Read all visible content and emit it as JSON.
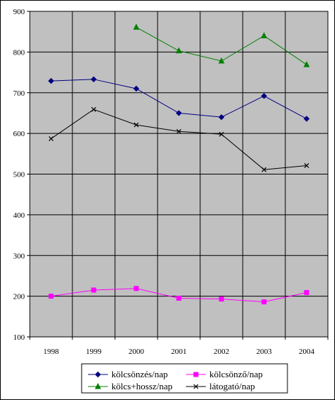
{
  "chart_data": {
    "type": "line",
    "categories": [
      "1998",
      "1999",
      "2000",
      "2001",
      "2002",
      "2003",
      "2004"
    ],
    "ylim": [
      100,
      900
    ],
    "yticks": [
      100,
      200,
      300,
      400,
      500,
      600,
      700,
      800,
      900
    ],
    "grid": true,
    "plot_background": "#c0c0c0",
    "legend_position": "bottom",
    "series": [
      {
        "name": "kölcsönzés/nap",
        "color": "#000080",
        "marker": "diamond",
        "values": [
          729,
          733,
          710,
          650,
          640,
          692,
          636
        ]
      },
      {
        "name": "kölcsönző/nap",
        "color": "#ff00ff",
        "marker": "square",
        "values": [
          200,
          215,
          219,
          195,
          193,
          186,
          209
        ]
      },
      {
        "name": "kölcs+hossz/nap",
        "color": "#008000",
        "marker": "triangle",
        "values": [
          null,
          null,
          861,
          803,
          778,
          840,
          769
        ]
      },
      {
        "name": "látogató/nap",
        "color": "#000000",
        "marker": "x",
        "values": [
          587,
          659,
          621,
          605,
          598,
          511,
          521
        ]
      }
    ]
  }
}
